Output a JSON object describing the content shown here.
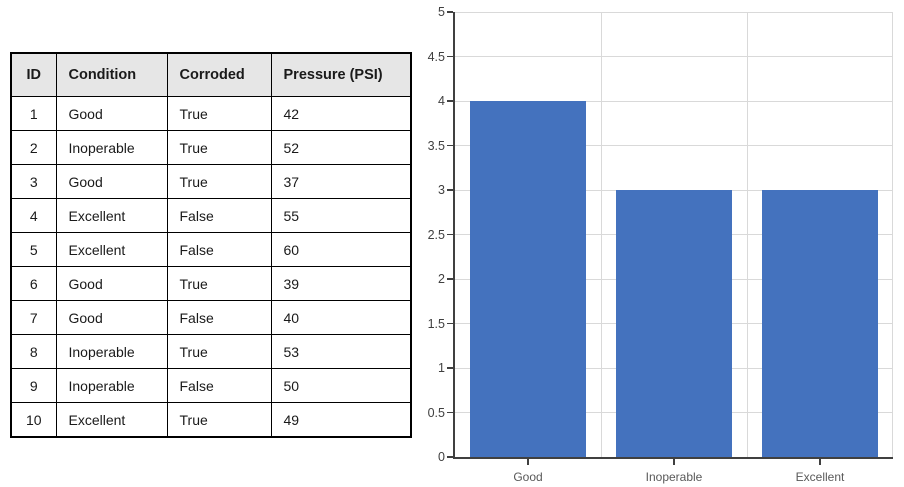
{
  "table": {
    "headers": [
      "ID",
      "Condition",
      "Corroded",
      "Pressure (PSI)"
    ],
    "rows": [
      [
        "1",
        "Good",
        "True",
        "42"
      ],
      [
        "2",
        "Inoperable",
        "True",
        "52"
      ],
      [
        "3",
        "Good",
        "True",
        "37"
      ],
      [
        "4",
        "Excellent",
        "False",
        "55"
      ],
      [
        "5",
        "Excellent",
        "False",
        "60"
      ],
      [
        "6",
        "Good",
        "True",
        "39"
      ],
      [
        "7",
        "Good",
        "False",
        "40"
      ],
      [
        "8",
        "Inoperable",
        "True",
        "53"
      ],
      [
        "9",
        "Inoperable",
        "False",
        "50"
      ],
      [
        "10",
        "Excellent",
        "True",
        "49"
      ]
    ],
    "header_bg": "#e6e6e6",
    "border_color": "#000000"
  },
  "chart_data": {
    "type": "bar",
    "categories": [
      "Good",
      "Inoperable",
      "Excellent"
    ],
    "values": [
      4,
      3,
      3
    ],
    "title": "",
    "xlabel": "",
    "ylabel": "",
    "ylim": [
      0,
      5
    ],
    "ytick_step": 0.5,
    "grid": true,
    "legend": false,
    "bar_color": "#4472be",
    "gridline_color": "#d9d9d9",
    "axis_color": "#404040",
    "ytick_label_color": "#404040",
    "xtick_label_color": "#595959"
  }
}
